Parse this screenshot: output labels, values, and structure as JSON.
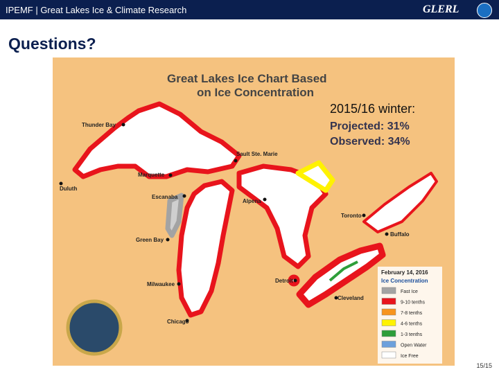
{
  "header": {
    "title": "IPEMF | Great Lakes Ice & Climate Research",
    "logo": "GLERL"
  },
  "slide_title": "Questions?",
  "map": {
    "title": "Great Lakes Ice Chart Based on Ice Concentration",
    "note": {
      "heading": "2015/16 winter:",
      "projected": "Projected: 31%",
      "observed": "Observed: 34%"
    },
    "cities": [
      "Thunder Bay",
      "Duluth",
      "Marquette",
      "Sault Ste. Marie",
      "Escanaba",
      "Green Bay",
      "Milwaukee",
      "Chicago",
      "Alpena",
      "Detroit",
      "Cleveland",
      "Toronto",
      "Buffalo"
    ],
    "legend": {
      "date": "February 14, 2016",
      "title": "Ice Concentration",
      "items": [
        {
          "label": "Fast Ice",
          "color": "#a3a3a3"
        },
        {
          "label": "9-10 tenths",
          "color": "#e8141c"
        },
        {
          "label": "7-8 tenths",
          "color": "#f7941d"
        },
        {
          "label": "4-6 tenths",
          "color": "#fff200"
        },
        {
          "label": "1-3 tenths",
          "color": "#2e9e3a"
        },
        {
          "label": "Open Water",
          "color": "#6ca0dc"
        },
        {
          "label": "Ice Free",
          "color": "#ffffff"
        }
      ]
    }
  },
  "page_number": "15/15"
}
